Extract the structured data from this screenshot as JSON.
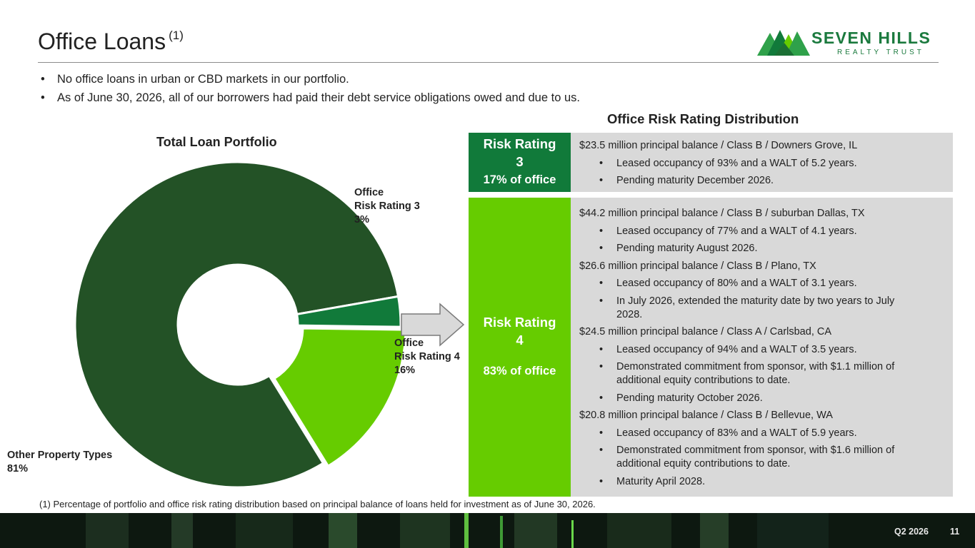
{
  "header": {
    "title": "Office Loans",
    "title_note": "(1)"
  },
  "logo": {
    "name": "SEVEN HILLS",
    "sub": "REALTY TRUST",
    "icon": "mountain-logo-icon",
    "colors": [
      "#117a3a",
      "#2fa14a",
      "#66cc00"
    ]
  },
  "bullets": [
    "No office loans in urban or CBD markets in our portfolio.",
    "As of June 30, 2026, all of our borrowers had paid their debt service obligations owed and due to us."
  ],
  "chart_data": {
    "type": "pie",
    "title": "Total Loan Portfolio",
    "categories": [
      "Other Property Types",
      "Office Risk Rating 3",
      "Office Risk Rating 4"
    ],
    "values": [
      81,
      3,
      16
    ],
    "unit": "%",
    "colors": [
      "#235226",
      "#117a3a",
      "#66cc00"
    ],
    "labels": [
      {
        "line1": "Other Property Types",
        "line2": "",
        "pct": "81%"
      },
      {
        "line1": "Office",
        "line2": "Risk Rating 3",
        "pct": "3%"
      },
      {
        "line1": "Office",
        "line2": "Risk Rating 4",
        "pct": "16%"
      }
    ]
  },
  "distribution": {
    "title": "Office Risk Rating Distribution",
    "rating3": {
      "label_line1": "Risk Rating",
      "label_line2": "3",
      "pct": "17% of office",
      "color": "#117a3a",
      "items": [
        {
          "type": "line",
          "text": "$23.5 million principal balance / Class B / Downers Grove, IL"
        },
        {
          "type": "sub",
          "lines": [
            "Leased occupancy of 93% and a WALT of 5.2 years."
          ]
        },
        {
          "type": "sub",
          "lines": [
            "Pending maturity December 2026."
          ]
        }
      ]
    },
    "rating4": {
      "label_line1": "Risk Rating",
      "label_line2": "4",
      "pct": "83% of office",
      "color": "#66cc00",
      "items": [
        {
          "type": "line",
          "text": "$44.2 million principal balance / Class B / suburban Dallas, TX"
        },
        {
          "type": "sub",
          "lines": [
            "Leased occupancy of 77% and a WALT of 4.1 years."
          ]
        },
        {
          "type": "sub",
          "lines": [
            "Pending maturity August 2026."
          ]
        },
        {
          "type": "line",
          "text": "$26.6 million principal balance / Class B / Plano, TX"
        },
        {
          "type": "sub",
          "lines": [
            "Leased occupancy of 80% and a WALT of 3.1 years."
          ]
        },
        {
          "type": "sub",
          "lines": [
            "In July 2026, extended the maturity date by two years to July",
            "2028."
          ]
        },
        {
          "type": "line",
          "text": "$24.5 million principal balance / Class A / Carlsbad, CA"
        },
        {
          "type": "sub",
          "lines": [
            "Leased occupancy of 94% and a WALT of 3.5 years."
          ]
        },
        {
          "type": "sub",
          "lines": [
            "Demonstrated commitment from sponsor, with $1.1 million of",
            "additional equity contributions to date."
          ]
        },
        {
          "type": "sub",
          "lines": [
            "Pending maturity October 2026."
          ]
        },
        {
          "type": "line",
          "text": "$20.8 million principal balance / Class B / Bellevue, WA"
        },
        {
          "type": "sub",
          "lines": [
            "Leased occupancy of 83% and a WALT of 5.9 years."
          ]
        },
        {
          "type": "sub",
          "lines": [
            "Demonstrated commitment from sponsor, with $1.6 million of",
            "additional equity contributions to date."
          ]
        },
        {
          "type": "sub",
          "lines": [
            "Maturity April 2028."
          ]
        }
      ]
    }
  },
  "footnote": "(1) Percentage of portfolio and office risk rating distribution based on principal balance of loans held for investment as of June 30, 2026.",
  "footer": {
    "quarter": "Q2 2026",
    "page": "11"
  }
}
